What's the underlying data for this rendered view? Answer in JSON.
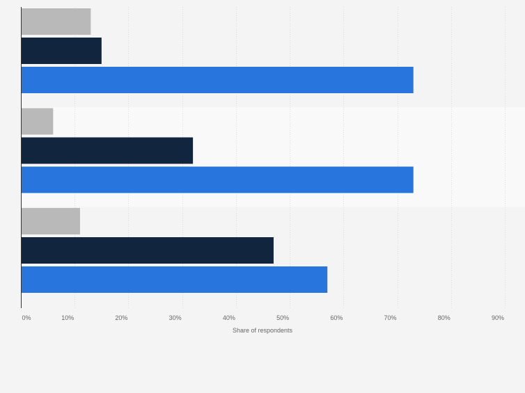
{
  "chart_data": {
    "type": "bar",
    "orientation": "horizontal",
    "categories": [
      "",
      "",
      ""
    ],
    "series": [
      {
        "name": "",
        "color": "#b9b9b9",
        "values": [
          13,
          6,
          11
        ]
      },
      {
        "name": "",
        "color": "#11253f",
        "values": [
          15,
          32,
          47
        ]
      },
      {
        "name": "",
        "color": "#2876dd",
        "values": [
          73,
          73,
          57
        ]
      }
    ],
    "xlabel": "Share of respondents",
    "ylabel": "",
    "xlim": [
      0,
      90
    ],
    "x_ticks": [
      "0%",
      "10%",
      "20%",
      "30%",
      "40%",
      "50%",
      "60%",
      "70%",
      "80%",
      "90%"
    ],
    "grid": true,
    "legend": "none"
  }
}
